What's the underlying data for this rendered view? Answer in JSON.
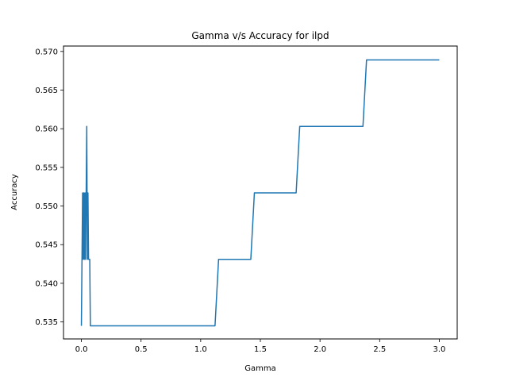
{
  "chart_data": {
    "type": "line",
    "title": "Gamma v/s Accuracy for ilpd",
    "xlabel": "Gamma",
    "ylabel": "Accuracy",
    "xlim": [
      -0.15,
      3.15
    ],
    "ylim": [
      0.5328,
      0.5707
    ],
    "xticks": [
      0.0,
      0.5,
      1.0,
      1.5,
      2.0,
      2.5,
      3.0
    ],
    "xtick_labels": [
      "0.0",
      "0.5",
      "1.0",
      "1.5",
      "2.0",
      "2.5",
      "3.0"
    ],
    "yticks": [
      0.535,
      0.54,
      0.545,
      0.55,
      0.555,
      0.56,
      0.565,
      0.57
    ],
    "ytick_labels": [
      "0.535",
      "0.540",
      "0.545",
      "0.550",
      "0.555",
      "0.560",
      "0.565",
      "0.570"
    ],
    "grid": false,
    "series": [
      {
        "color": "#1f77b4",
        "x": [
          0.0,
          0.005,
          0.01,
          0.015,
          0.02,
          0.025,
          0.03,
          0.035,
          0.04,
          0.045,
          0.05,
          0.055,
          0.06,
          0.07,
          0.075,
          1.12,
          1.15,
          1.42,
          1.45,
          1.8,
          1.83,
          2.36,
          2.39,
          3.0
        ],
        "y": [
          0.5345,
          0.5431,
          0.5517,
          0.5431,
          0.5517,
          0.5431,
          0.5517,
          0.5431,
          0.5517,
          0.5603,
          0.5431,
          0.5517,
          0.5431,
          0.5431,
          0.5345,
          0.5345,
          0.5431,
          0.5431,
          0.5517,
          0.5517,
          0.5603,
          0.5603,
          0.5689,
          0.5689
        ]
      }
    ]
  }
}
